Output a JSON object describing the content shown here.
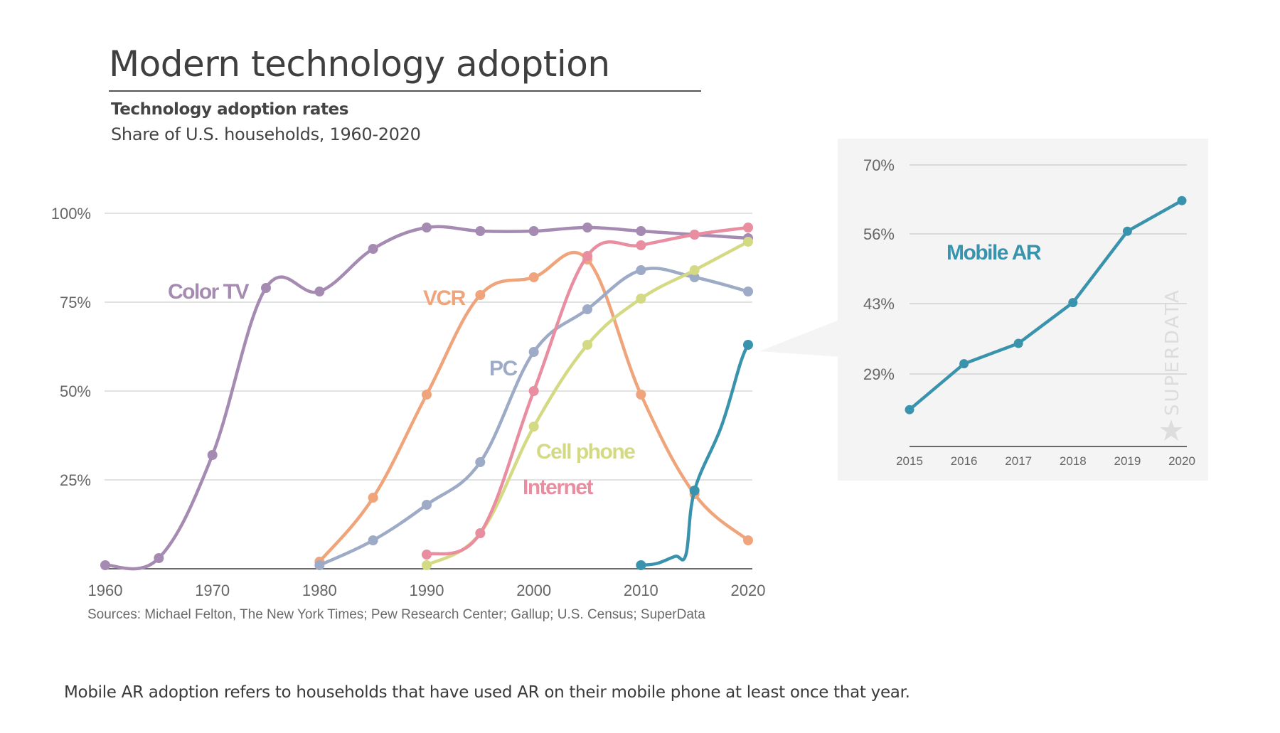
{
  "header": {
    "title": "Modern technology adoption",
    "subtitle_bold": "Technology adoption rates",
    "subtitle": "Share of U.S. households, 1960-2020"
  },
  "sources": "Sources: Michael Felton, The New York Times; Pew Research Center; Gallup; U.S. Census; SuperData",
  "footnote": "Mobile AR adoption refers to households that have used AR on their mobile phone at least once that year.",
  "watermark": "SUPERDATA",
  "watermark_icon": "star-icon",
  "chart_data": [
    {
      "type": "line",
      "title": "Technology adoption rates",
      "subtitle": "Share of U.S. households, 1960-2020",
      "xlabel": "",
      "ylabel": "",
      "xlim": [
        1960,
        2020
      ],
      "ylim": [
        0,
        100
      ],
      "x_ticks": [
        1960,
        1970,
        1980,
        1990,
        2000,
        2010,
        2020
      ],
      "x_tick_labels": [
        "1960",
        "1970",
        "1980",
        "1990",
        "2000",
        "2010",
        "2020"
      ],
      "y_ticks": [
        25,
        50,
        75,
        100
      ],
      "y_tick_labels": [
        "25%",
        "50%",
        "75%",
        "100%"
      ],
      "grid": true,
      "legend": "inline labels",
      "series": [
        {
          "name": "Color TV",
          "color": "#a58bb2",
          "x": [
            1960,
            1965,
            1970,
            1975,
            1980,
            1985,
            1990,
            1995,
            2000,
            2005,
            2010,
            2015,
            2020
          ],
          "values": [
            1,
            3,
            32,
            79,
            78,
            90,
            96,
            95,
            95,
            96,
            95,
            94,
            93
          ]
        },
        {
          "name": "VCR",
          "color": "#f0a47b",
          "x": [
            1980,
            1985,
            1990,
            1995,
            2000,
            2005,
            2010,
            2015,
            2020
          ],
          "values": [
            2,
            20,
            49,
            77,
            82,
            87,
            49,
            21,
            8
          ]
        },
        {
          "name": "PC",
          "color": "#9eabc6",
          "x": [
            1980,
            1985,
            1990,
            1995,
            2000,
            2005,
            2010,
            2015,
            2020
          ],
          "values": [
            1,
            8,
            18,
            30,
            61,
            73,
            84,
            82,
            78
          ]
        },
        {
          "name": "Internet",
          "color": "#e98da0",
          "x": [
            1990,
            1995,
            2000,
            2005,
            2010,
            2015,
            2020
          ],
          "values": [
            4,
            10,
            50,
            88,
            91,
            94,
            96
          ]
        },
        {
          "name": "Cell phone",
          "color": "#d4da84",
          "x": [
            1990,
            1995,
            2000,
            2005,
            2010,
            2015,
            2020
          ],
          "values": [
            1,
            10,
            40,
            63,
            76,
            84,
            92
          ]
        },
        {
          "name": "Mobile AR",
          "color": "#3a93ad",
          "x": [
            2010,
            2015,
            2020
          ],
          "values": [
            1,
            22,
            63
          ]
        }
      ]
    },
    {
      "type": "line",
      "title": "Mobile AR",
      "xlim": [
        2015,
        2020
      ],
      "ylim": [
        15,
        70
      ],
      "x_ticks": [
        2015,
        2016,
        2017,
        2018,
        2019,
        2020
      ],
      "x_tick_labels": [
        "2015",
        "2016",
        "2017",
        "2018",
        "2019",
        "2020"
      ],
      "y_ticks": [
        29,
        43,
        56,
        70
      ],
      "y_tick_labels": [
        "29%",
        "43%",
        "56%",
        "70%"
      ],
      "grid": true,
      "legend": "inline label",
      "series": [
        {
          "name": "Mobile AR",
          "color": "#3a93ad",
          "x": [
            2015,
            2016,
            2017,
            2018,
            2019,
            2020
          ],
          "values": [
            22,
            31,
            35,
            43,
            57,
            63
          ]
        }
      ]
    }
  ]
}
